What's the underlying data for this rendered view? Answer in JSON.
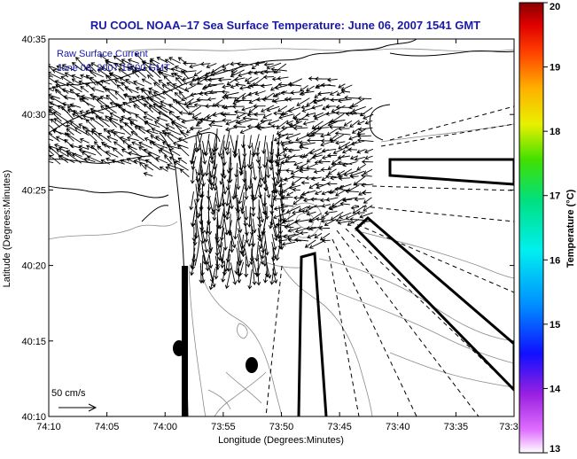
{
  "chart_data": {
    "type": "vector-field",
    "title": "RU COOL   NOAA–17  Sea Surface Temperature:  June 06, 2007 1541 GMT",
    "xlabel": "Longitude (Degrees:Minutes)",
    "ylabel": "Latitude (Degrees:Minutes)",
    "x_ticks": [
      "74:10",
      "74:05",
      "74:00",
      "73:55",
      "73:50",
      "73:45",
      "73:40",
      "73:35",
      "73:3"
    ],
    "y_ticks": [
      "40:35",
      "40:30",
      "40:25",
      "40:20",
      "40:15",
      "40:10"
    ],
    "xlim_minutes_west": [
      10,
      -30
    ],
    "ylim_minutes_north": [
      10,
      35
    ],
    "annotation_line1": "Raw Surface Current",
    "annotation_line2": "June 06, 2007 15:00 GMT",
    "scale_label": "50 cm/s",
    "colorbar": {
      "label": "Temperature (°C)",
      "range": [
        13,
        20
      ],
      "ticks": [
        "13",
        "14",
        "15",
        "16",
        "17",
        "18",
        "19",
        "20"
      ]
    },
    "colors": {
      "title": "#1a1aa8",
      "land": "#000000",
      "vectors": "#000000"
    }
  }
}
